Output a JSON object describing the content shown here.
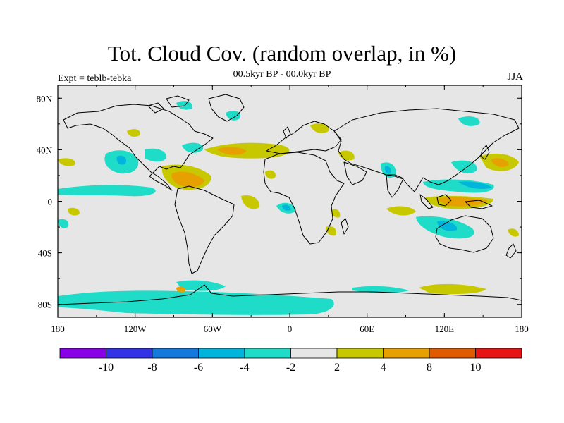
{
  "title": "Tot. Cloud Cov. (random overlap, in %)",
  "subtitle": "00.5kyr BP - 00.0kyr BP",
  "left_label": "Expt = teblb-tebka",
  "right_label": "JJA",
  "map": {
    "projection": "cylindrical-equidistant",
    "lon_range": [
      -180,
      180
    ],
    "lat_range": [
      -90,
      90
    ],
    "background_color": "#e6e6e6",
    "lat_ticks": [
      {
        "value": 80,
        "label": "80N"
      },
      {
        "value": 40,
        "label": "40N"
      },
      {
        "value": 0,
        "label": "0"
      },
      {
        "value": -40,
        "label": "40S"
      },
      {
        "value": -80,
        "label": "80S"
      }
    ],
    "lon_ticks": [
      {
        "value": -180,
        "label": "180"
      },
      {
        "value": -120,
        "label": "120W"
      },
      {
        "value": -60,
        "label": "60W"
      },
      {
        "value": 0,
        "label": "0"
      },
      {
        "value": 60,
        "label": "60E"
      },
      {
        "value": 120,
        "label": "120E"
      },
      {
        "value": 180,
        "label": "180"
      }
    ]
  },
  "colorbar": {
    "colors": [
      "#8a00e6",
      "#3232e6",
      "#1478dc",
      "#00b4dc",
      "#1edcc8",
      "#e6e6e6",
      "#c8c800",
      "#e6a000",
      "#e05a00",
      "#e61414"
    ],
    "labels": [
      "-10",
      "-8",
      "-6",
      "-4",
      "-2",
      "2",
      "4",
      "8",
      "10"
    ]
  }
}
